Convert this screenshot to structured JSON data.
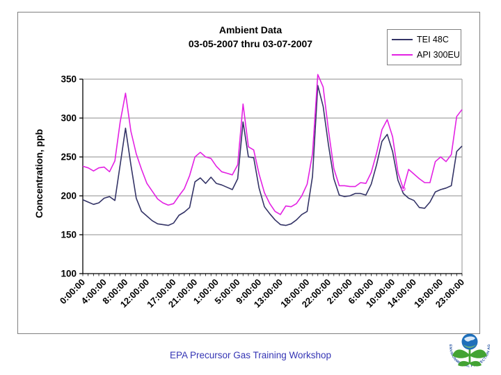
{
  "slide": {
    "footer": "EPA Precursor Gas Training Workshop"
  },
  "chart": {
    "title_line1": "Ambient Data",
    "title_line2": "03-05-2007 thru 03-07-2007",
    "y_axis_title": "Concentration, ppb",
    "legend": [
      {
        "label": "TEI 48C",
        "color": "#333366"
      },
      {
        "label": "API 300EU",
        "color": "#e320e3"
      }
    ],
    "colors": {
      "gridline": "#a3a3a3",
      "axis": "#000000",
      "frame": "#7f7f7f",
      "footer_text": "#3434b4"
    }
  },
  "chart_data": {
    "type": "line",
    "title": "Ambient Data 03-05-2007 thru 03-07-2007",
    "xlabel": "",
    "ylabel": "Concentration, ppb",
    "ylim": [
      100,
      350
    ],
    "ytick_interval": 50,
    "ytick_labels": [
      "100",
      "150",
      "200",
      "250",
      "300",
      "350"
    ],
    "grid": true,
    "legend_position": "top-right",
    "n_points": 72,
    "x_tick_labels": [
      "0:00:00",
      "4:00:00",
      "8:00:00",
      "12:00:00",
      "17:00:00",
      "21:00:00",
      "1:00:00",
      "5:00:00",
      "9:00:00",
      "13:00:00",
      "18:00:00",
      "22:00:00",
      "2:00:00",
      "6:00:00",
      "10:00:00",
      "14:00:00",
      "19:00:00",
      "23:00:00"
    ],
    "x_tick_indices": [
      0,
      4,
      8,
      12,
      17,
      21,
      25,
      29,
      33,
      37,
      42,
      46,
      50,
      54,
      58,
      62,
      67,
      71
    ],
    "series": [
      {
        "name": "TEI 48C",
        "color": "#333366",
        "values": [
          195,
          192,
          189,
          191,
          197,
          199,
          194,
          240,
          287,
          240,
          197,
          180,
          174,
          168,
          164,
          163,
          162,
          165,
          175,
          179,
          185,
          218,
          223,
          216,
          224,
          216,
          214,
          211,
          208,
          222,
          295,
          250,
          249,
          210,
          186,
          177,
          169,
          163,
          162,
          164,
          169,
          176,
          180,
          225,
          342,
          315,
          265,
          222,
          201,
          199,
          200,
          203,
          203,
          201,
          215,
          240,
          270,
          279,
          257,
          220,
          203,
          197,
          194,
          185,
          184,
          192,
          205,
          208,
          210,
          213,
          257,
          264
        ]
      },
      {
        "name": "API 300EU",
        "color": "#e320e3",
        "values": [
          238,
          236,
          232,
          236,
          237,
          231,
          245,
          295,
          332,
          283,
          254,
          234,
          216,
          206,
          196,
          191,
          188,
          190,
          200,
          209,
          226,
          250,
          256,
          250,
          248,
          238,
          231,
          229,
          227,
          240,
          318,
          263,
          259,
          228,
          204,
          190,
          180,
          176,
          187,
          186,
          190,
          200,
          215,
          254,
          356,
          340,
          284,
          235,
          213,
          213,
          212,
          212,
          217,
          216,
          230,
          255,
          285,
          298,
          276,
          230,
          209,
          234,
          228,
          222,
          217,
          217,
          244,
          250,
          244,
          253,
          302,
          311
        ]
      }
    ],
    "circled_point": {
      "series": "API 300EU",
      "index": 60,
      "value": 209
    }
  },
  "logo": {
    "arc_text": "ENVIRONMENTAL PROTECTION AGENCY",
    "globe_color": "#1f6fba",
    "leaf_color": "#43a333",
    "text_color": "#1f4e9e"
  }
}
